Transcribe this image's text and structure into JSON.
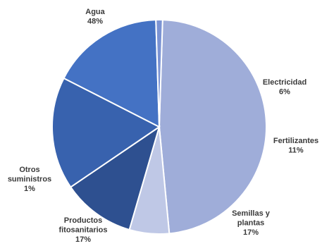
{
  "chart_data": {
    "type": "pie",
    "title": "",
    "slices": [
      {
        "name": "Agua",
        "value": 48,
        "label_lines": [
          "Agua"
        ],
        "pct_label": "48%",
        "color": "#9FADD9"
      },
      {
        "name": "Electricidad",
        "value": 6,
        "label_lines": [
          "Electricidad"
        ],
        "pct_label": "6%",
        "color": "#BFC8E6"
      },
      {
        "name": "Fertilizantes",
        "value": 11,
        "label_lines": [
          "Fertilizantes"
        ],
        "pct_label": "11%",
        "color": "#2E5090"
      },
      {
        "name": "Semillas y plantas",
        "value": 17,
        "label_lines": [
          "Semillas y",
          "plantas"
        ],
        "pct_label": "17%",
        "color": "#3862AE"
      },
      {
        "name": "Productos fitosanitarios",
        "value": 17,
        "label_lines": [
          "Productos",
          "fitosanitarios"
        ],
        "pct_label": "17%",
        "color": "#4472C4"
      },
      {
        "name": "Otros suministros",
        "value": 1,
        "label_lines": [
          "Otros",
          "suministros"
        ],
        "pct_label": "1%",
        "color": "#7B93D3"
      }
    ]
  }
}
